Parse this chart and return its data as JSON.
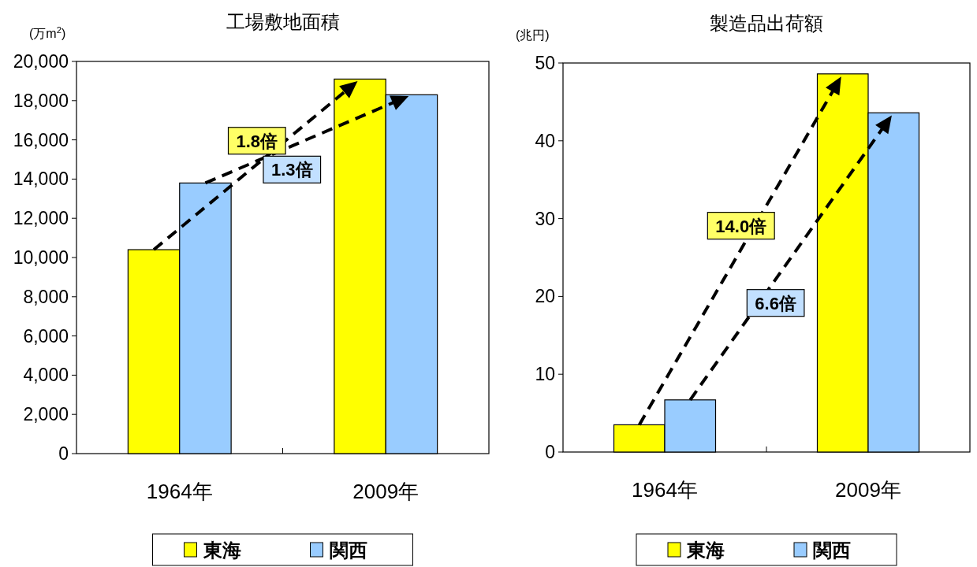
{
  "chart_data": [
    {
      "type": "bar",
      "title": "工場敷地面積",
      "ylabel": "(万m$^{2}$)",
      "categories": [
        "1964年",
        "2009年"
      ],
      "series": [
        {
          "name": "東海",
          "color": "#ffff00",
          "values": [
            10400,
            19100
          ]
        },
        {
          "name": "関西",
          "color": "#99ccff",
          "values": [
            13800,
            18300
          ]
        }
      ],
      "ylim": [
        0,
        20000
      ],
      "yticks": [
        {
          "value": 0,
          "label": "0"
        },
        {
          "value": 2000,
          "label": "2,000"
        },
        {
          "value": 4000,
          "label": "4,000"
        },
        {
          "value": 6000,
          "label": "6,000"
        },
        {
          "value": 8000,
          "label": "8,000"
        },
        {
          "value": 10000,
          "label": "10,000"
        },
        {
          "value": 12000,
          "label": "12,000"
        },
        {
          "value": 14000,
          "label": "14,000"
        },
        {
          "value": 16000,
          "label": "16,000"
        },
        {
          "value": 18000,
          "label": "18,000"
        },
        {
          "value": 20000,
          "label": "20,000"
        }
      ],
      "annotations": [
        "1.8倍",
        "1.3倍"
      ],
      "grid": false,
      "legend": "bottom"
    },
    {
      "type": "bar",
      "title": "製造品出荷額",
      "ylabel": "(兆円)",
      "categories": [
        "1964年",
        "2009年"
      ],
      "series": [
        {
          "name": "東海",
          "color": "#ffff00",
          "values": [
            3.5,
            48.6
          ]
        },
        {
          "name": "関西",
          "color": "#99ccff",
          "values": [
            6.7,
            43.6
          ]
        }
      ],
      "ylim": [
        0,
        50
      ],
      "yticks": [
        0,
        10,
        20,
        30,
        40,
        50
      ],
      "annotations": [
        "14.0倍",
        "6.6倍"
      ],
      "grid": false,
      "legend": "bottom"
    }
  ]
}
